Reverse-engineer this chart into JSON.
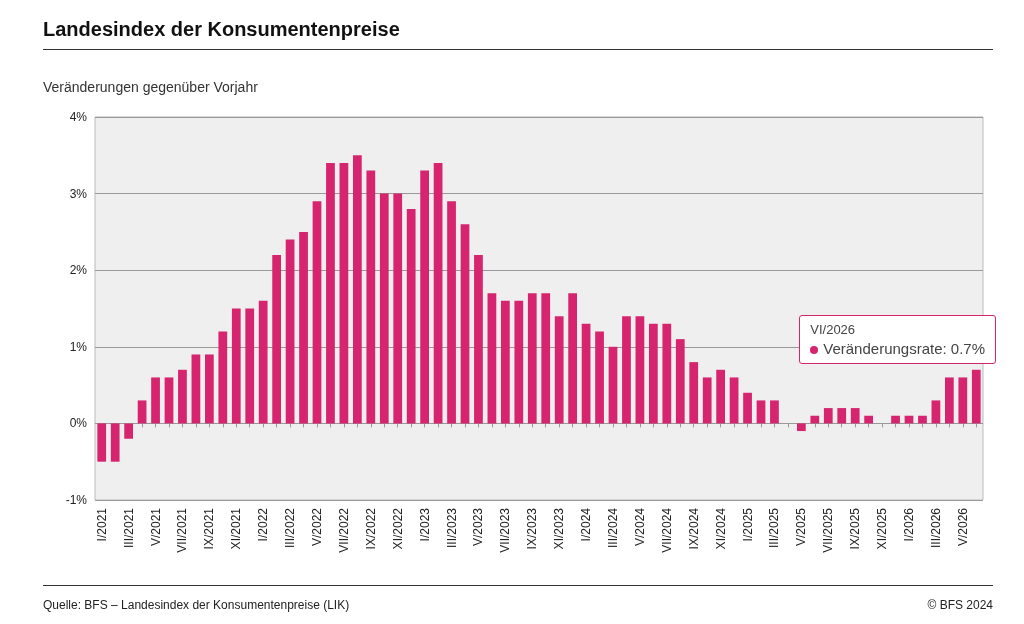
{
  "chart_data": {
    "type": "bar",
    "title": "Landesindex der Konsumentenpreise",
    "subtitle": "Veränderungen gegenüber Vorjahr",
    "categories": [
      "I/2021",
      null,
      "III/2021",
      null,
      "V/2021",
      null,
      "VII/2021",
      null,
      "IX/2021",
      null,
      "XI/2021",
      null,
      "I/2022",
      null,
      "III/2022",
      null,
      "V/2022",
      null,
      "VII/2022",
      null,
      "IX/2022",
      null,
      "XI/2022",
      null,
      "I/2023",
      null,
      "III/2023",
      null,
      "V/2023",
      null,
      "VII/2023",
      null,
      "IX/2023",
      null,
      "XI/2023",
      null,
      "I/2024",
      null,
      "III/2024",
      null,
      "V/2024",
      null,
      "VII/2024",
      null,
      "IX/2024",
      null,
      "XI/2024",
      null,
      "I/2025",
      null,
      "III/2025",
      null,
      "V/2025",
      null,
      "VII/2025",
      null,
      "IX/2025",
      null,
      "XI/2025",
      null,
      "I/2026",
      null,
      "III/2026",
      null,
      "V/2026",
      null
    ],
    "series": [
      {
        "color": "#d6246e",
        "values": [
          -0.5,
          -0.5,
          -0.2,
          0.3,
          0.6,
          0.6,
          0.7,
          0.9,
          0.9,
          1.2,
          1.5,
          1.5,
          1.6,
          2.2,
          2.4,
          2.5,
          2.9,
          3.4,
          3.4,
          3.5,
          3.3,
          3.0,
          3.0,
          2.8,
          3.3,
          3.4,
          2.9,
          2.6,
          2.2,
          1.7,
          1.6,
          1.6,
          1.7,
          1.7,
          1.4,
          1.7,
          1.3,
          1.2,
          1.0,
          1.4,
          1.4,
          1.3,
          1.3,
          1.1,
          0.8,
          0.6,
          0.7,
          0.6,
          0.4,
          0.3,
          0.3,
          0.0,
          -0.1,
          0.1,
          0.2,
          0.2,
          0.2,
          0.1,
          0.0,
          0.1,
          0.1,
          0.1,
          0.3,
          0.6,
          0.6,
          0.7
        ]
      }
    ],
    "ylim": [
      -1,
      4
    ],
    "yticks": [
      {
        "value": -1,
        "label": "-1%"
      },
      {
        "value": 0,
        "label": "0%"
      },
      {
        "value": 1,
        "label": "1%"
      },
      {
        "value": 2,
        "label": "2%"
      },
      {
        "value": 3,
        "label": "3%"
      },
      {
        "value": 4,
        "label": "4%"
      }
    ],
    "grid": "y",
    "annotations": [
      "VI/2026",
      "Veränderungsrate: 0.7%",
      "Quelle: BFS – Landesindex der Konsumentenpreise (LIK)",
      "© BFS 2024"
    ]
  }
}
